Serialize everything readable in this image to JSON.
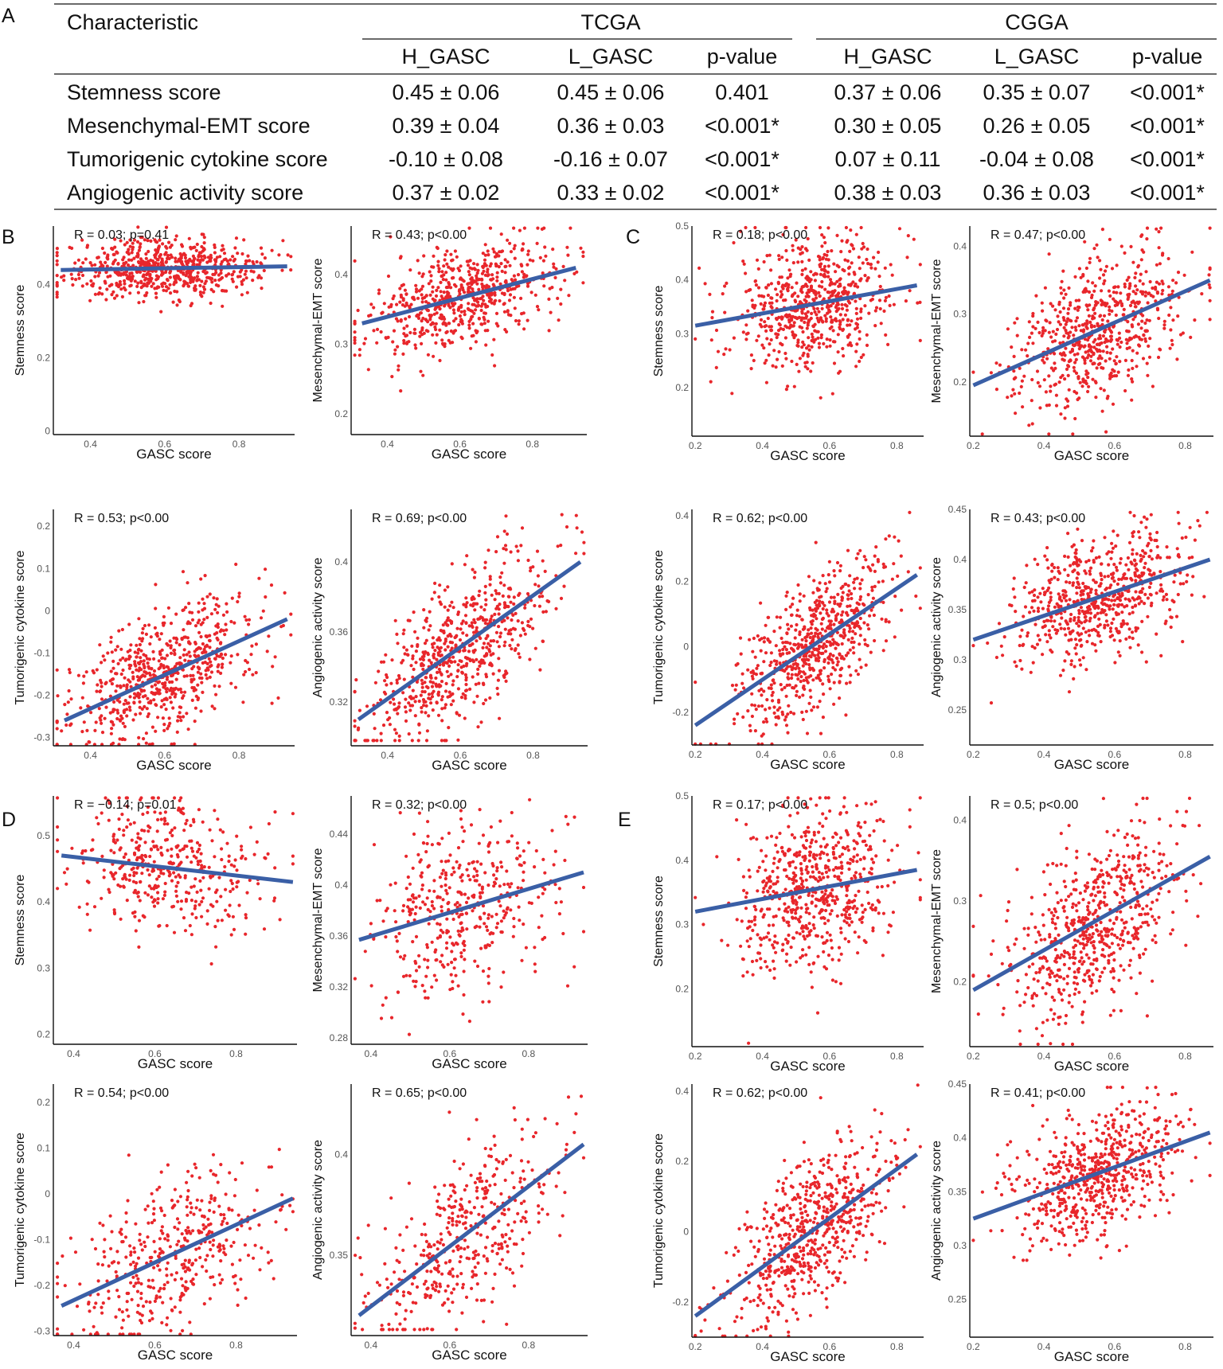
{
  "table": {
    "panel_label": "A",
    "header": {
      "characteristic": "Characteristic",
      "groups": [
        "TCGA",
        "CGGA"
      ],
      "columns": [
        "H_GASC",
        "L_GASC",
        "p-value",
        "H_GASC",
        "L_GASC",
        "p-value"
      ]
    },
    "rows": [
      {
        "label": "Stemness score",
        "cells": [
          "0.45 ± 0.06",
          "0.45 ± 0.06",
          "0.401",
          "0.37 ± 0.06",
          "0.35 ± 0.07",
          "<0.001*"
        ]
      },
      {
        "label": "Mesenchymal-EMT score",
        "cells": [
          "0.39 ± 0.04",
          "0.36 ± 0.03",
          "<0.001*",
          "0.30 ± 0.05",
          "0.26 ± 0.05",
          "<0.001*"
        ]
      },
      {
        "label": "Tumorigenic cytokine score",
        "cells": [
          "-0.10 ± 0.08",
          "-0.16 ± 0.07",
          "<0.001*",
          "0.07 ± 0.11",
          "-0.04 ± 0.08",
          "<0.001*"
        ]
      },
      {
        "label": "Angiogenic activity score",
        "cells": [
          "0.37 ± 0.02",
          "0.33 ± 0.02",
          "<0.001*",
          "0.38 ± 0.03",
          "0.36 ± 0.03",
          "<0.001*"
        ]
      }
    ]
  },
  "colors": {
    "points": "#e8262b",
    "fit_line": "#3a5fa6",
    "axis": "#111111",
    "tick_text": "#555555"
  },
  "chart_data": [
    {
      "panel": "B",
      "type": "scatter",
      "xlabel": "GASC score",
      "ylabel": "Stemness score",
      "annotation": "R = 0.03; p=0.41",
      "xlim": [
        0.3,
        0.95
      ],
      "ylim": [
        -0.01,
        0.56
      ],
      "xticks": [
        0.4,
        0.6,
        0.8
      ],
      "yticks": [
        0.0,
        0.2,
        0.4
      ],
      "fit": {
        "x": [
          0.32,
          0.93
        ],
        "y": [
          0.44,
          0.45
        ]
      },
      "points": {
        "n": 650,
        "center_x": 0.6,
        "sd_x": 0.13,
        "center_y": 0.46,
        "sd_y": 0.04
      }
    },
    {
      "panel": "B",
      "type": "scatter",
      "xlabel": "GASC score",
      "ylabel": "Mesenchymal-EMT score",
      "annotation": "R = 0.43; p<0.00",
      "xlim": [
        0.3,
        0.95
      ],
      "ylim": [
        0.17,
        0.47
      ],
      "xticks": [
        0.4,
        0.6,
        0.8
      ],
      "yticks": [
        0.2,
        0.3,
        0.4
      ],
      "fit": {
        "x": [
          0.33,
          0.92
        ],
        "y": [
          0.33,
          0.41
        ]
      },
      "points": {
        "n": 650,
        "center_x": 0.6,
        "sd_x": 0.13,
        "center_y": 0.37,
        "sd_y": 0.035
      }
    },
    {
      "panel": "B",
      "type": "scatter",
      "xlabel": "GASC score",
      "ylabel": "Tumorigenic cytokine score",
      "annotation": "R = 0.53; p<0.00",
      "xlim": [
        0.3,
        0.95
      ],
      "ylim": [
        -0.32,
        0.24
      ],
      "xticks": [
        0.4,
        0.6,
        0.8
      ],
      "yticks": [
        -0.3,
        -0.2,
        -0.1,
        0.0,
        0.1,
        0.2
      ],
      "fit": {
        "x": [
          0.33,
          0.93
        ],
        "y": [
          -0.26,
          -0.02
        ]
      },
      "points": {
        "n": 650,
        "center_x": 0.6,
        "sd_x": 0.13,
        "center_y": -0.14,
        "sd_y": 0.075
      }
    },
    {
      "panel": "B",
      "type": "scatter",
      "xlabel": "GASC score",
      "ylabel": "Angiogenic activity score",
      "annotation": "R = 0.69; p<0.00",
      "xlim": [
        0.3,
        0.95
      ],
      "ylim": [
        0.295,
        0.43
      ],
      "xticks": [
        0.4,
        0.6,
        0.8
      ],
      "yticks": [
        0.32,
        0.36,
        0.4
      ],
      "fit": {
        "x": [
          0.32,
          0.93
        ],
        "y": [
          0.31,
          0.4
        ]
      },
      "points": {
        "n": 650,
        "center_x": 0.6,
        "sd_x": 0.13,
        "center_y": 0.35,
        "sd_y": 0.02
      }
    },
    {
      "panel": "C",
      "type": "scatter",
      "xlabel": "GASC score",
      "ylabel": "Stemness score",
      "annotation": "R = 0.18; p<0.00",
      "xlim": [
        0.19,
        0.88
      ],
      "ylim": [
        0.11,
        0.5
      ],
      "xticks": [
        0.2,
        0.4,
        0.6,
        0.8
      ],
      "yticks": [
        0.2,
        0.3,
        0.4,
        0.5
      ],
      "fit": {
        "x": [
          0.2,
          0.86
        ],
        "y": [
          0.315,
          0.39
        ]
      },
      "points": {
        "n": 650,
        "center_x": 0.55,
        "sd_x": 0.12,
        "center_y": 0.36,
        "sd_y": 0.06
      }
    },
    {
      "panel": "C",
      "type": "scatter",
      "xlabel": "GASC score",
      "ylabel": "Mesenchymal-EMT score",
      "annotation": "R = 0.47; p<0.00",
      "xlim": [
        0.19,
        0.88
      ],
      "ylim": [
        0.12,
        0.43
      ],
      "xticks": [
        0.2,
        0.4,
        0.6,
        0.8
      ],
      "yticks": [
        0.2,
        0.3,
        0.4
      ],
      "fit": {
        "x": [
          0.2,
          0.87
        ],
        "y": [
          0.195,
          0.35
        ]
      },
      "points": {
        "n": 650,
        "center_x": 0.55,
        "sd_x": 0.12,
        "center_y": 0.27,
        "sd_y": 0.05
      }
    },
    {
      "panel": "C",
      "type": "scatter",
      "xlabel": "GASC score",
      "ylabel": "Tumorigenic cytokine score",
      "annotation": "R = 0.62; p<0.00",
      "xlim": [
        0.19,
        0.88
      ],
      "ylim": [
        -0.3,
        0.42
      ],
      "xticks": [
        0.2,
        0.4,
        0.6,
        0.8
      ],
      "yticks": [
        -0.2,
        0.0,
        0.2,
        0.4
      ],
      "fit": {
        "x": [
          0.2,
          0.86
        ],
        "y": [
          -0.24,
          0.22
        ]
      },
      "points": {
        "n": 650,
        "center_x": 0.55,
        "sd_x": 0.12,
        "center_y": 0.0,
        "sd_y": 0.1
      }
    },
    {
      "panel": "C",
      "type": "scatter",
      "xlabel": "GASC score",
      "ylabel": "Angiogenic activity score",
      "annotation": "R = 0.43; p<0.00",
      "xlim": [
        0.19,
        0.88
      ],
      "ylim": [
        0.215,
        0.45
      ],
      "xticks": [
        0.2,
        0.4,
        0.6,
        0.8
      ],
      "yticks": [
        0.25,
        0.3,
        0.35,
        0.4,
        0.45
      ],
      "fit": {
        "x": [
          0.2,
          0.87
        ],
        "y": [
          0.32,
          0.4
        ]
      },
      "points": {
        "n": 650,
        "center_x": 0.55,
        "sd_x": 0.12,
        "center_y": 0.37,
        "sd_y": 0.03
      }
    },
    {
      "panel": "D",
      "type": "scatter",
      "xlabel": "GASC score",
      "ylabel": "Stemness score",
      "annotation": "R = −0.14; p=0.01",
      "xlim": [
        0.35,
        0.95
      ],
      "ylim": [
        0.185,
        0.56
      ],
      "xticks": [
        0.4,
        0.6,
        0.8
      ],
      "yticks": [
        0.2,
        0.3,
        0.4,
        0.5
      ],
      "fit": {
        "x": [
          0.37,
          0.94
        ],
        "y": [
          0.47,
          0.43
        ]
      },
      "points": {
        "n": 420,
        "center_x": 0.64,
        "sd_x": 0.12,
        "center_y": 0.46,
        "sd_y": 0.05
      }
    },
    {
      "panel": "D",
      "type": "scatter",
      "xlabel": "GASC score",
      "ylabel": "Mesenchymal-EMT score",
      "annotation": "R = 0.32; p<0.00",
      "xlim": [
        0.35,
        0.95
      ],
      "ylim": [
        0.275,
        0.47
      ],
      "xticks": [
        0.4,
        0.6,
        0.8
      ],
      "yticks": [
        0.28,
        0.32,
        0.36,
        0.4,
        0.44
      ],
      "fit": {
        "x": [
          0.37,
          0.94
        ],
        "y": [
          0.357,
          0.41
        ]
      },
      "points": {
        "n": 420,
        "center_x": 0.64,
        "sd_x": 0.12,
        "center_y": 0.38,
        "sd_y": 0.035
      }
    },
    {
      "panel": "D",
      "type": "scatter",
      "xlabel": "GASC score",
      "ylabel": "Tumorigenic cytokine score",
      "annotation": "R = 0.54; p<0.00",
      "xlim": [
        0.35,
        0.95
      ],
      "ylim": [
        -0.31,
        0.24
      ],
      "xticks": [
        0.4,
        0.6,
        0.8
      ],
      "yticks": [
        -0.3,
        -0.2,
        -0.1,
        0.0,
        0.1,
        0.2
      ],
      "fit": {
        "x": [
          0.37,
          0.94
        ],
        "y": [
          -0.245,
          -0.01
        ]
      },
      "points": {
        "n": 420,
        "center_x": 0.64,
        "sd_x": 0.12,
        "center_y": -0.14,
        "sd_y": 0.08
      }
    },
    {
      "panel": "D",
      "type": "scatter",
      "xlabel": "GASC score",
      "ylabel": "Angiogenic activity score",
      "annotation": "R = 0.65; p<0.00",
      "xlim": [
        0.35,
        0.95
      ],
      "ylim": [
        0.31,
        0.435
      ],
      "xticks": [
        0.4,
        0.6,
        0.8
      ],
      "yticks": [
        0.35,
        0.4
      ],
      "fit": {
        "x": [
          0.37,
          0.94
        ],
        "y": [
          0.32,
          0.405
        ]
      },
      "points": {
        "n": 420,
        "center_x": 0.64,
        "sd_x": 0.12,
        "center_y": 0.365,
        "sd_y": 0.022
      }
    },
    {
      "panel": "E",
      "type": "scatter",
      "xlabel": "GASC score",
      "ylabel": "Stemness score",
      "annotation": "R = 0.17; p<0.00",
      "xlim": [
        0.19,
        0.88
      ],
      "ylim": [
        0.11,
        0.5
      ],
      "xticks": [
        0.2,
        0.4,
        0.6,
        0.8
      ],
      "yticks": [
        0.2,
        0.3,
        0.4,
        0.5
      ],
      "fit": {
        "x": [
          0.2,
          0.86
        ],
        "y": [
          0.32,
          0.385
        ]
      },
      "points": {
        "n": 620,
        "center_x": 0.55,
        "sd_x": 0.12,
        "center_y": 0.36,
        "sd_y": 0.06
      }
    },
    {
      "panel": "E",
      "type": "scatter",
      "xlabel": "GASC score",
      "ylabel": "Mesenchymal-EMT score",
      "annotation": "R = 0.5; p<0.00",
      "xlim": [
        0.19,
        0.88
      ],
      "ylim": [
        0.12,
        0.43
      ],
      "xticks": [
        0.2,
        0.4,
        0.6,
        0.8
      ],
      "yticks": [
        0.2,
        0.3,
        0.4
      ],
      "fit": {
        "x": [
          0.2,
          0.87
        ],
        "y": [
          0.19,
          0.355
        ]
      },
      "points": {
        "n": 620,
        "center_x": 0.55,
        "sd_x": 0.12,
        "center_y": 0.27,
        "sd_y": 0.05
      }
    },
    {
      "panel": "E",
      "type": "scatter",
      "xlabel": "GASC score",
      "ylabel": "Tumorigenic cytokine score",
      "annotation": "R = 0.62; p<0.00",
      "xlim": [
        0.19,
        0.88
      ],
      "ylim": [
        -0.3,
        0.42
      ],
      "xticks": [
        0.2,
        0.4,
        0.6,
        0.8
      ],
      "yticks": [
        -0.2,
        0.0,
        0.2,
        0.4
      ],
      "fit": {
        "x": [
          0.2,
          0.86
        ],
        "y": [
          -0.24,
          0.22
        ]
      },
      "points": {
        "n": 620,
        "center_x": 0.55,
        "sd_x": 0.12,
        "center_y": 0.0,
        "sd_y": 0.1
      }
    },
    {
      "panel": "E",
      "type": "scatter",
      "xlabel": "GASC score",
      "ylabel": "Angiogenic activity score",
      "annotation": "R = 0.41; p<0.00",
      "xlim": [
        0.19,
        0.88
      ],
      "ylim": [
        0.215,
        0.45
      ],
      "xticks": [
        0.2,
        0.4,
        0.6,
        0.8
      ],
      "yticks": [
        0.25,
        0.3,
        0.35,
        0.4,
        0.45
      ],
      "fit": {
        "x": [
          0.2,
          0.87
        ],
        "y": [
          0.325,
          0.405
        ]
      },
      "points": {
        "n": 620,
        "center_x": 0.55,
        "sd_x": 0.12,
        "center_y": 0.375,
        "sd_y": 0.028
      }
    }
  ]
}
